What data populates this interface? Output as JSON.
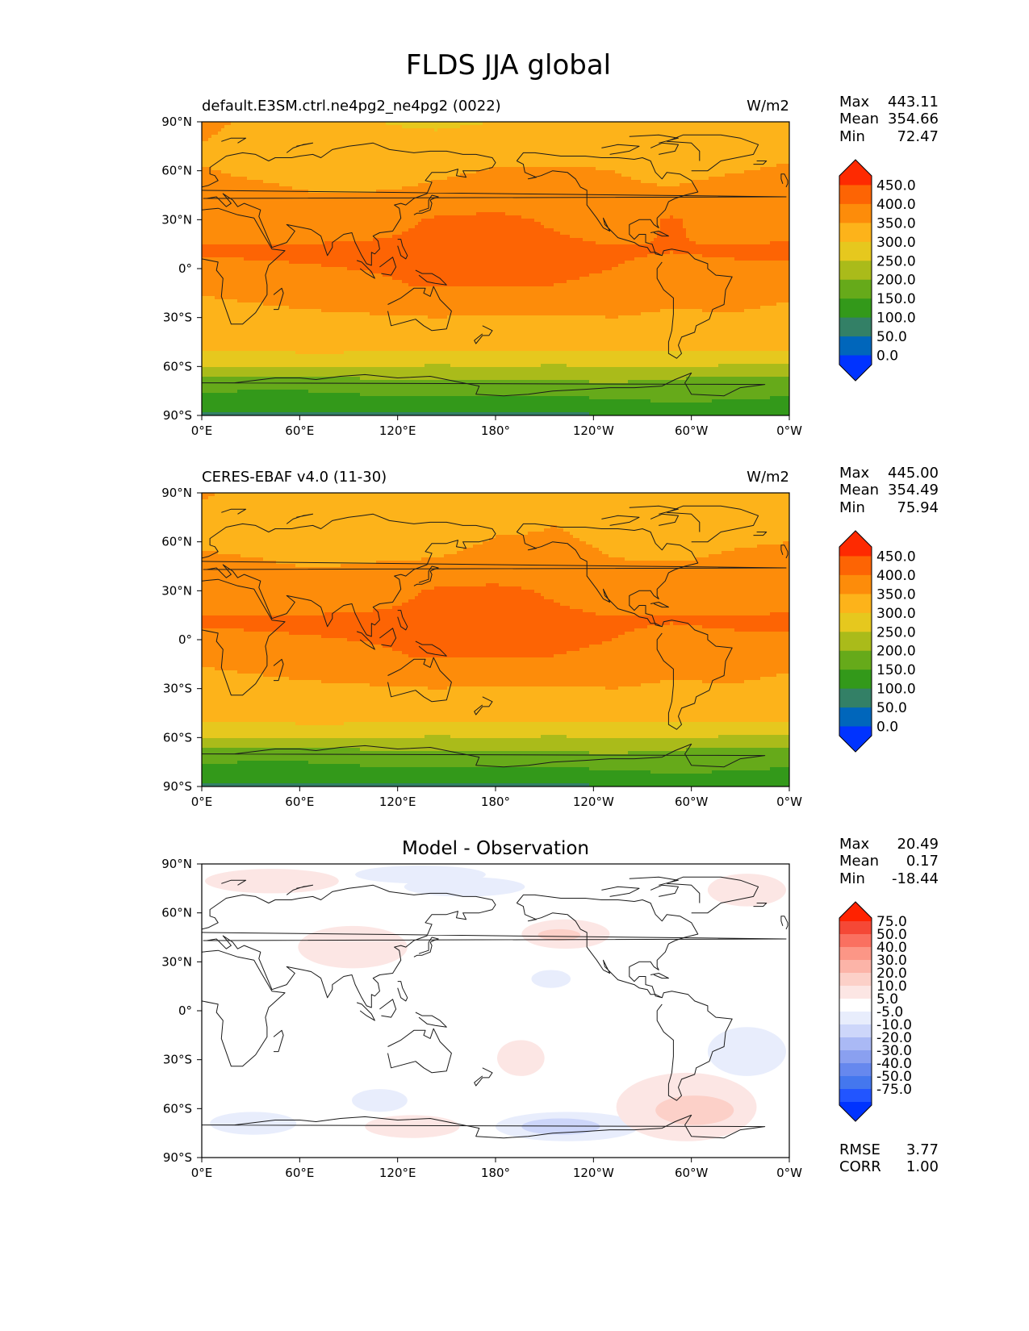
{
  "figure": {
    "title": "FLDS JJA global"
  },
  "colors": {
    "main_levels": [
      "#0033ff",
      "#0066bb",
      "#338066",
      "#33991a",
      "#66aa1a",
      "#aabb1a",
      "#e6c81e",
      "#fdb31a",
      "#fd8c0a",
      "#fd6404",
      "#fe2a01"
    ],
    "diff_levels": [
      "#0033ff",
      "#2255ff",
      "#4477ee",
      "#6688ee",
      "#8aa0f0",
      "#aab9f5",
      "#cdd6fa",
      "#e8edfc",
      "#ffffff",
      "#fce6e4",
      "#fcd0c8",
      "#fcb4a8",
      "#fc9686",
      "#fa7060",
      "#f54836",
      "#ff2200"
    ]
  },
  "axes": {
    "lat_ticks": [
      "90°N",
      "60°N",
      "30°N",
      "0°",
      "30°S",
      "60°S",
      "90°S"
    ],
    "lon_ticks": [
      "0°E",
      "60°E",
      "120°E",
      "180°",
      "120°W",
      "60°W",
      "0°W"
    ]
  },
  "chart_data": [
    {
      "type": "heatmap",
      "title": "default.E3SM.ctrl.ne4pg2_ne4pg2 (0022)",
      "units": "W/m2",
      "stats": {
        "max_label": "Max",
        "max": "443.11",
        "mean_label": "Mean",
        "mean": "354.66",
        "min_label": "Min",
        "min": "72.47"
      },
      "xlim": [
        0,
        360
      ],
      "ylim": [
        -90,
        90
      ],
      "colorbar_levels": [
        "450.0",
        "400.0",
        "350.0",
        "300.0",
        "250.0",
        "200.0",
        "150.0",
        "100.0",
        "50.0",
        "0.0"
      ],
      "field_bands": [
        {
          "lat": 90,
          "values": [
            360,
            340,
            320,
            300,
            290,
            300,
            340,
            345,
            330,
            330,
            345
          ]
        },
        {
          "lat": 70,
          "values": [
            345,
            330,
            315,
            320,
            330,
            340,
            345,
            345,
            330,
            335,
            345
          ]
        },
        {
          "lat": 50,
          "values": [
            360,
            355,
            345,
            345,
            355,
            365,
            360,
            355,
            350,
            360,
            365
          ]
        },
        {
          "lat": 30,
          "values": [
            380,
            365,
            375,
            385,
            405,
            410,
            395,
            380,
            405,
            380,
            380
          ]
        },
        {
          "lat": 10,
          "values": [
            405,
            410,
            410,
            410,
            410,
            410,
            410,
            405,
            400,
            405,
            410
          ]
        },
        {
          "lat": -10,
          "values": [
            360,
            370,
            385,
            395,
            405,
            405,
            400,
            395,
            375,
            380,
            365
          ]
        },
        {
          "lat": -30,
          "values": [
            330,
            335,
            340,
            345,
            350,
            345,
            345,
            350,
            340,
            345,
            335
          ]
        },
        {
          "lat": -50,
          "values": [
            305,
            305,
            310,
            305,
            305,
            305,
            305,
            305,
            305,
            305,
            305
          ]
        },
        {
          "lat": -60,
          "values": [
            255,
            250,
            255,
            250,
            245,
            250,
            245,
            250,
            250,
            245,
            245
          ]
        },
        {
          "lat": -70,
          "values": [
            175,
            165,
            170,
            185,
            195,
            185,
            190,
            200,
            185,
            170,
            165
          ]
        },
        {
          "lat": -90,
          "values": [
            95,
            95,
            95,
            95,
            95,
            95,
            95,
            95,
            130,
            130,
            130
          ]
        }
      ]
    },
    {
      "type": "heatmap",
      "title": "CERES-EBAF v4.0 (11-30)",
      "units": "W/m2",
      "stats": {
        "max_label": "Max",
        "max": "445.00",
        "mean_label": "Mean",
        "mean": "354.49",
        "min_label": "Min",
        "min": "75.94"
      },
      "xlim": [
        0,
        360
      ],
      "ylim": [
        -90,
        90
      ],
      "colorbar_levels": [
        "450.0",
        "400.0",
        "350.0",
        "300.0",
        "250.0",
        "200.0",
        "150.0",
        "100.0",
        "50.0",
        "0.0"
      ],
      "field_bands": [
        {
          "lat": 90,
          "values": [
            355,
            335,
            315,
            300,
            300,
            315,
            345,
            345,
            330,
            330,
            340
          ]
        },
        {
          "lat": 70,
          "values": [
            335,
            325,
            310,
            320,
            330,
            345,
            350,
            345,
            330,
            335,
            340
          ]
        },
        {
          "lat": 50,
          "values": [
            355,
            350,
            340,
            345,
            350,
            360,
            355,
            350,
            345,
            355,
            360
          ]
        },
        {
          "lat": 30,
          "values": [
            380,
            365,
            375,
            385,
            405,
            410,
            395,
            380,
            400,
            380,
            380
          ]
        },
        {
          "lat": 10,
          "values": [
            405,
            410,
            410,
            410,
            410,
            410,
            410,
            405,
            400,
            405,
            410
          ]
        },
        {
          "lat": -10,
          "values": [
            360,
            370,
            385,
            395,
            405,
            405,
            400,
            395,
            375,
            380,
            365
          ]
        },
        {
          "lat": -30,
          "values": [
            330,
            335,
            340,
            345,
            350,
            345,
            345,
            350,
            340,
            345,
            335
          ]
        },
        {
          "lat": -50,
          "values": [
            305,
            305,
            310,
            305,
            305,
            305,
            305,
            305,
            305,
            305,
            305
          ]
        },
        {
          "lat": -60,
          "values": [
            255,
            250,
            255,
            250,
            245,
            250,
            245,
            250,
            250,
            245,
            245
          ]
        },
        {
          "lat": -70,
          "values": [
            175,
            165,
            170,
            185,
            195,
            185,
            190,
            200,
            185,
            170,
            165
          ]
        },
        {
          "lat": -90,
          "values": [
            95,
            95,
            95,
            95,
            95,
            95,
            95,
            95,
            130,
            130,
            130
          ]
        }
      ]
    },
    {
      "type": "heatmap",
      "title": "Model - Observation",
      "units": "",
      "stats": {
        "max_label": "Max",
        "max": "20.49",
        "mean_label": "Mean",
        "mean": "0.17",
        "min_label": "Min",
        "min": "-18.44"
      },
      "extra_stats": {
        "rmse_label": "RMSE",
        "rmse": "3.77",
        "corr_label": "CORR",
        "corr": "1.00"
      },
      "xlim": [
        0,
        360
      ],
      "ylim": [
        -90,
        90
      ],
      "colorbar_levels": [
        "75.0",
        "50.0",
        "40.0",
        "30.0",
        "20.0",
        "10.0",
        "5.0",
        "-5.0",
        "-10.0",
        "-20.0",
        "-30.0",
        "-40.0",
        "-50.0",
        "-75.0"
      ],
      "anomalies": [
        {
          "lon": [
            2,
            84
          ],
          "lat": [
            72,
            87
          ],
          "value": 7
        },
        {
          "lon": [
            94,
            174
          ],
          "lat": [
            78,
            89
          ],
          "value": -7
        },
        {
          "lon": [
            124,
            198
          ],
          "lat": [
            70,
            82
          ],
          "value": -6
        },
        {
          "lon": [
            59,
            126
          ],
          "lat": [
            26,
            52
          ],
          "value": 6
        },
        {
          "lon": [
            196,
            250
          ],
          "lat": [
            38,
            56
          ],
          "value": 8
        },
        {
          "lon": [
            206,
            232
          ],
          "lat": [
            43,
            50
          ],
          "value": 13
        },
        {
          "lon": [
            202,
            226
          ],
          "lat": [
            14,
            25
          ],
          "value": -7
        },
        {
          "lon": [
            310,
            358
          ],
          "lat": [
            64,
            84
          ],
          "value": 6
        },
        {
          "lon": [
            310,
            358
          ],
          "lat": [
            -10,
            -40
          ],
          "value": -6
        },
        {
          "lon": [
            181,
            210
          ],
          "lat": [
            -18,
            -40
          ],
          "value": 6
        },
        {
          "lon": [
            92,
            126
          ],
          "lat": [
            -48,
            -62
          ],
          "value": -6
        },
        {
          "lon": [
            5,
            58
          ],
          "lat": [
            -62,
            -76
          ],
          "value": -6
        },
        {
          "lon": [
            100,
            158
          ],
          "lat": [
            -64,
            -78
          ],
          "value": 6
        },
        {
          "lon": [
            180,
            268
          ],
          "lat": [
            -62,
            -80
          ],
          "value": -8
        },
        {
          "lon": [
            196,
            244
          ],
          "lat": [
            -66,
            -76
          ],
          "value": -13
        },
        {
          "lon": [
            254,
            340
          ],
          "lat": [
            -38,
            -80
          ],
          "value": 7
        },
        {
          "lon": [
            278,
            326
          ],
          "lat": [
            -52,
            -70
          ],
          "value": 14
        }
      ]
    }
  ]
}
